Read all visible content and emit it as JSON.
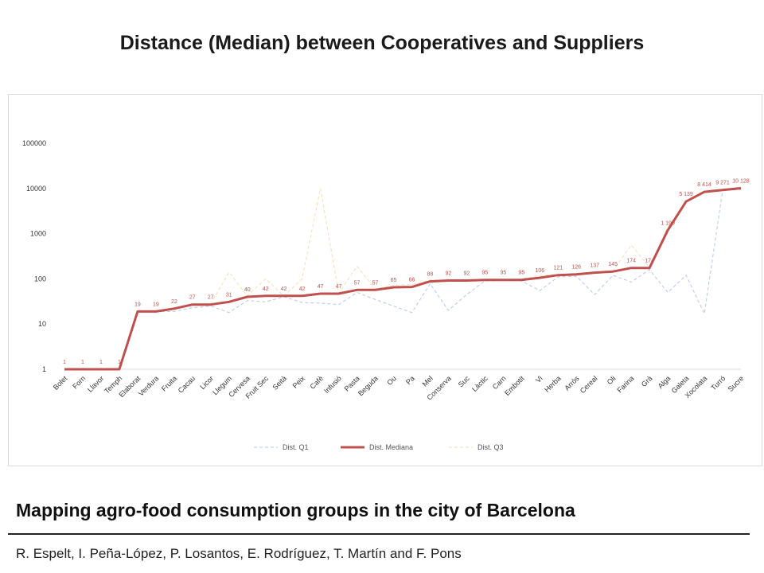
{
  "slide": {
    "title": "Distance (Median) between Cooperatives and Suppliers",
    "bottom_title": "Mapping agro-food consumption groups in the city of Barcelona",
    "authors": "R. Espelt, I. Peña-López, P. Losantos, E. Rodríguez, T. Martín and F. Pons"
  },
  "colors": {
    "median": "#c0504d",
    "q1": "#b4c7e7",
    "q3": "#f5deb3",
    "grid": "#d9d9d9"
  },
  "chart_data": {
    "type": "line",
    "y_scale": "log",
    "ylim": [
      1,
      100000
    ],
    "y_ticks": [
      "1",
      "10",
      "100",
      "1000",
      "10000",
      "100000"
    ],
    "grid": false,
    "legend_position": "bottom",
    "categories": [
      "Bolet",
      "Forn",
      "Llavor",
      "Temph",
      "Elaborat",
      "Verdura",
      "Fruita",
      "Cacau",
      "Licor",
      "Llegum",
      "Cervesa",
      "Fruit Sec",
      "Seità",
      "Peix",
      "Cafè",
      "Infusió",
      "Pasta",
      "Beguda",
      "Ou",
      "Pa",
      "Mel",
      "Conserva",
      "Suc",
      "Làctic",
      "Carn",
      "Embotit",
      "Vi",
      "Herba",
      "Arròs",
      "Cereal",
      "Oli",
      "Farina",
      "Grà",
      "Alga",
      "Galeta",
      "Xocolata",
      "Turró",
      "Sucre"
    ],
    "series": [
      {
        "name": "Dist. Q1",
        "style": "dashed",
        "color": "#b4c7e7",
        "values": [
          1,
          1,
          1,
          1,
          19,
          19,
          19,
          23,
          25,
          18,
          33,
          31,
          40,
          30,
          29,
          27,
          50,
          35,
          25,
          18,
          78,
          20,
          45,
          90,
          92,
          90,
          55,
          110,
          115,
          45,
          120,
          85,
          160,
          50,
          120,
          17,
          9000,
          9500
        ]
      },
      {
        "name": "Dist. Mediana",
        "style": "solid",
        "color": "#c0504d",
        "values": [
          1,
          1,
          1,
          1,
          19,
          19,
          22,
          27,
          27,
          31,
          40,
          42,
          42,
          42,
          47,
          47,
          57,
          57,
          65,
          66,
          88,
          92,
          92,
          95,
          95,
          95,
          106,
          121,
          126,
          137,
          145,
          174,
          174,
          1190,
          5139,
          8414,
          9271,
          10128
        ],
        "labels": [
          "1",
          "1",
          "1",
          "1",
          "19",
          "19",
          "22",
          "27",
          "27",
          "31",
          "40",
          "42",
          "42",
          "42",
          "47",
          "47",
          "57",
          "57",
          "65",
          "66",
          "88",
          "92",
          "92",
          "95",
          "95",
          "95",
          "106",
          "121",
          "126",
          "137",
          "145",
          "174",
          "174",
          "1 190",
          "5 139",
          "8 414",
          "9 271",
          "10 128"
        ]
      },
      {
        "name": "Dist. Q3",
        "style": "dashed",
        "color": "#f5deb3",
        "values": [
          1,
          1,
          1,
          1,
          20,
          20,
          23,
          28,
          28,
          140,
          42,
          100,
          42,
          100,
          10000,
          48,
          190,
          60,
          72,
          75,
          95,
          93,
          95,
          95,
          96,
          100,
          120,
          125,
          128,
          140,
          150,
          560,
          180,
          1400,
          5200,
          8700,
          9500,
          10500
        ]
      }
    ]
  }
}
